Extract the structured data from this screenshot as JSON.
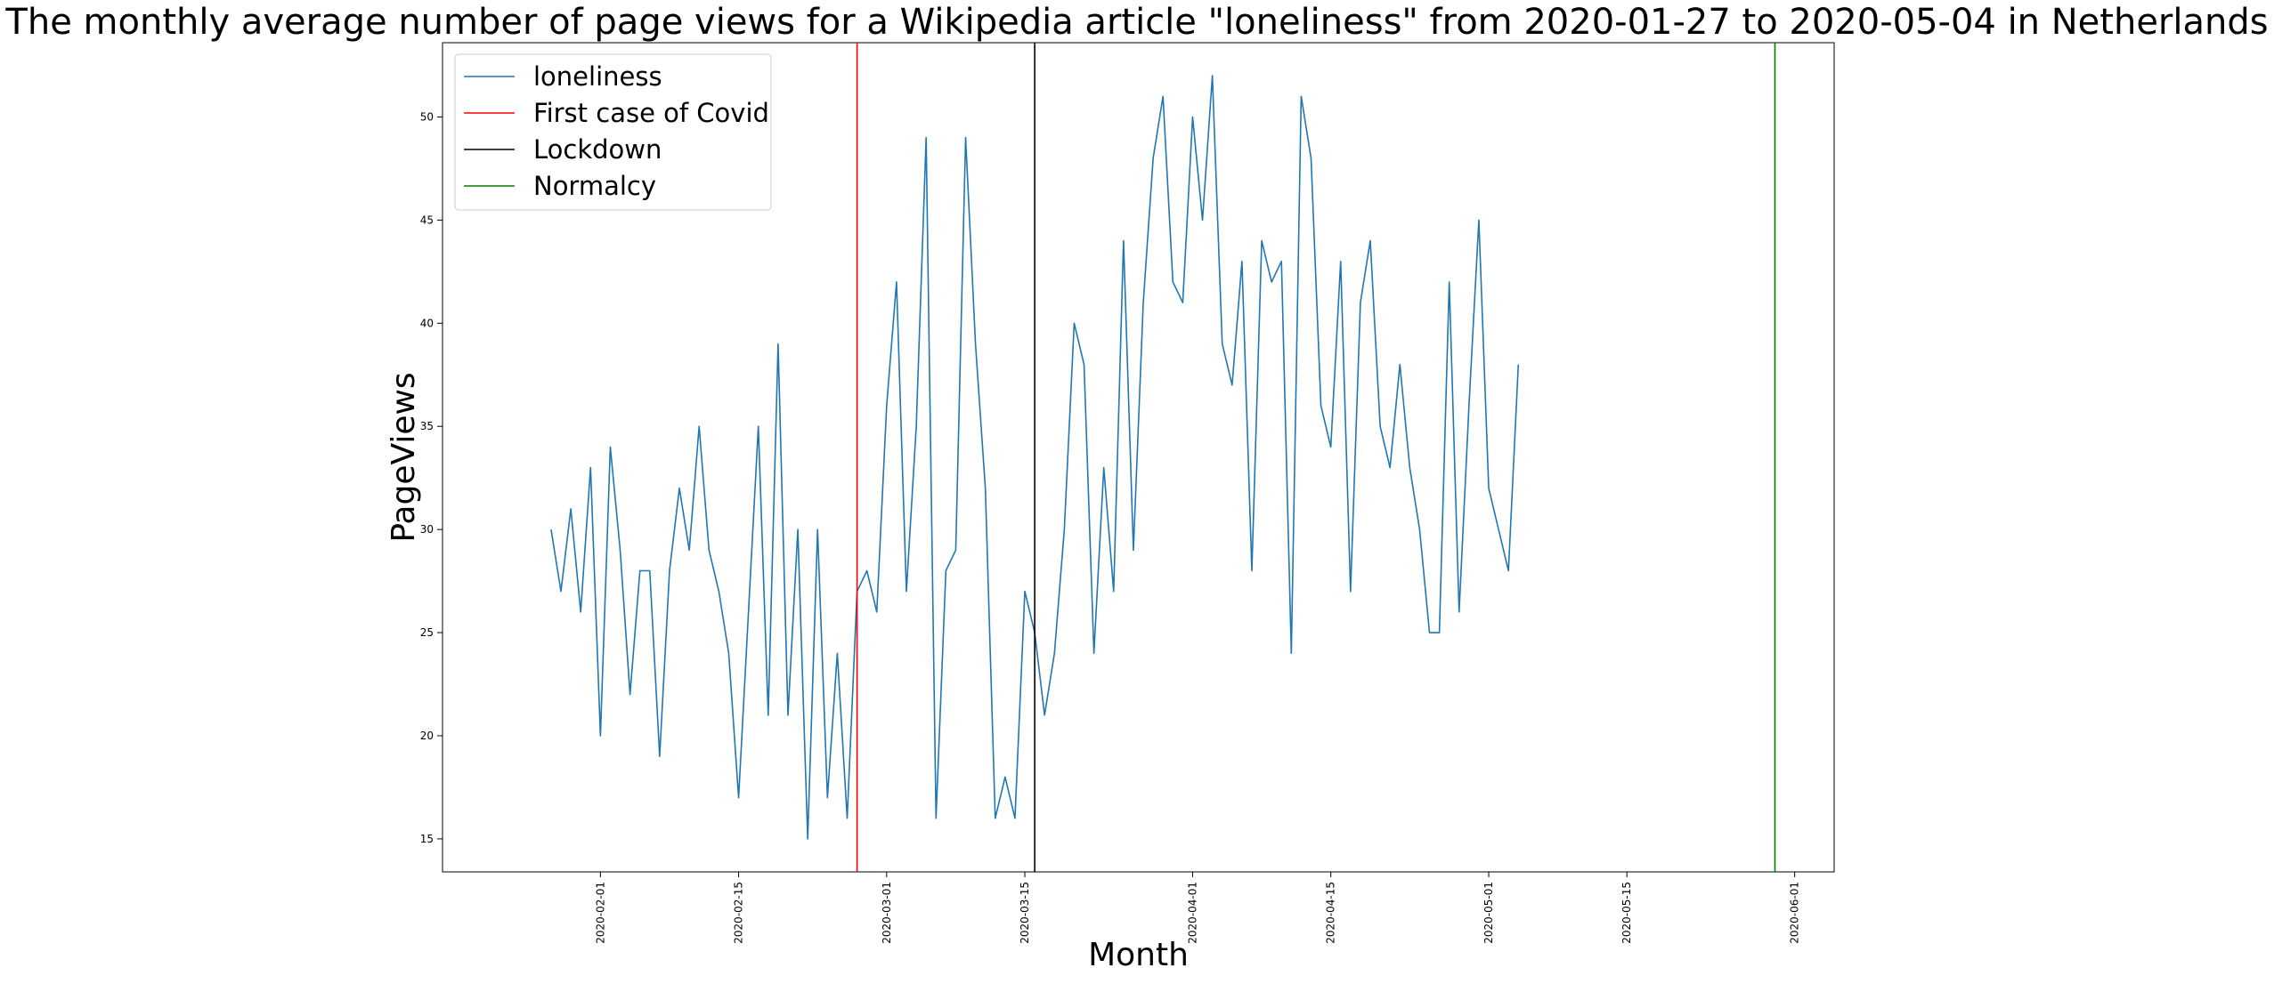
{
  "chart_data": {
    "type": "line",
    "title": "The monthly average number of page views for a Wikipedia article \"loneliness\" from 2020-01-27 to 2020-05-04 in Netherlands",
    "xlabel": "Month",
    "ylabel": "PageViews",
    "x_start": "2020-01-27",
    "x_end": "2020-05-04",
    "xlim": [
      "2020-01-16",
      "2020-06-05"
    ],
    "ylim": [
      13.4,
      53.6
    ],
    "yticks": [
      15,
      20,
      25,
      30,
      35,
      40,
      45,
      50
    ],
    "xticks": [
      "2020-02-01",
      "2020-02-15",
      "2020-03-01",
      "2020-03-15",
      "2020-04-01",
      "2020-04-15",
      "2020-05-01",
      "2020-05-15",
      "2020-06-01"
    ],
    "grid": false,
    "legend_position": "upper-left",
    "series": [
      {
        "name": "loneliness",
        "color": "#1f77b4",
        "values": [
          30,
          27,
          31,
          26,
          33,
          20,
          34,
          29,
          22,
          28,
          28,
          19,
          28,
          32,
          29,
          35,
          29,
          27,
          24,
          17,
          26,
          35,
          21,
          39,
          21,
          30,
          15,
          30,
          17,
          24,
          16,
          27,
          28,
          26,
          36,
          42,
          27,
          35,
          49,
          16,
          28,
          29,
          49,
          39,
          32,
          16,
          18,
          16,
          27,
          25,
          21,
          24,
          30,
          40,
          38,
          24,
          33,
          27,
          44,
          29,
          41,
          48,
          51,
          42,
          41,
          50,
          45,
          52,
          39,
          37,
          43,
          28,
          44,
          42,
          43,
          24,
          51,
          48,
          36,
          34,
          43,
          27,
          41,
          44,
          35,
          33,
          38,
          33,
          30,
          25,
          25,
          42,
          26,
          36,
          45,
          32,
          30,
          28,
          38
        ]
      }
    ],
    "vlines": [
      {
        "name": "First case of Covid",
        "date": "2020-02-27",
        "color": "#ff0000"
      },
      {
        "name": "Lockdown",
        "date": "2020-03-16",
        "color": "#000000"
      },
      {
        "name": "Normalcy",
        "date": "2020-05-30",
        "color": "#008000"
      }
    ]
  }
}
